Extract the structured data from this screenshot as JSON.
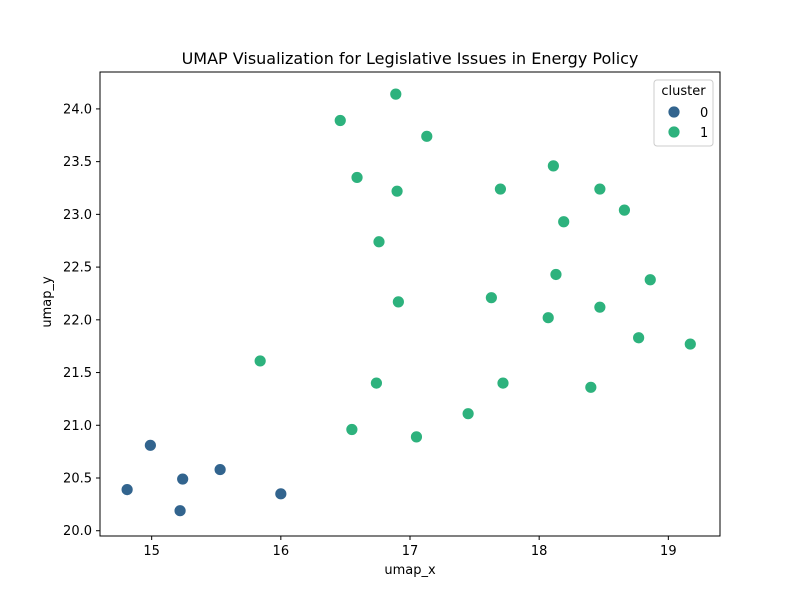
{
  "chart_data": {
    "type": "scatter",
    "title": "UMAP Visualization for Legislative Issues in Energy Policy",
    "xlabel": "umap_x",
    "ylabel": "umap_y",
    "xlim": [
      14.6,
      19.4
    ],
    "ylim": [
      19.95,
      24.35
    ],
    "xticks": [
      15,
      16,
      17,
      18,
      19
    ],
    "yticks": [
      20.0,
      20.5,
      21.0,
      21.5,
      22.0,
      22.5,
      23.0,
      23.5,
      24.0
    ],
    "xtick_labels": [
      "15",
      "16",
      "17",
      "18",
      "19"
    ],
    "ytick_labels": [
      "20.0",
      "20.5",
      "21.0",
      "21.5",
      "22.0",
      "22.5",
      "23.0",
      "23.5",
      "24.0"
    ],
    "grid": false,
    "legend": {
      "title": "cluster",
      "position": "top-right",
      "entries": [
        {
          "label": "0",
          "color": "#32648e"
        },
        {
          "label": "1",
          "color": "#2db27d"
        }
      ]
    },
    "series": [
      {
        "name": "0",
        "color": "#32648e",
        "points": [
          [
            14.99,
            20.81
          ],
          [
            14.81,
            20.39
          ],
          [
            15.24,
            20.49
          ],
          [
            15.53,
            20.58
          ],
          [
            15.22,
            20.19
          ],
          [
            16.0,
            20.35
          ]
        ]
      },
      {
        "name": "1",
        "color": "#2db27d",
        "points": [
          [
            16.89,
            24.14
          ],
          [
            16.46,
            23.89
          ],
          [
            17.13,
            23.74
          ],
          [
            16.59,
            23.35
          ],
          [
            16.9,
            23.22
          ],
          [
            18.11,
            23.46
          ],
          [
            17.7,
            23.24
          ],
          [
            18.47,
            23.24
          ],
          [
            18.66,
            23.04
          ],
          [
            18.19,
            22.93
          ],
          [
            16.76,
            22.74
          ],
          [
            18.13,
            22.43
          ],
          [
            18.86,
            22.38
          ],
          [
            17.63,
            22.21
          ],
          [
            16.91,
            22.17
          ],
          [
            18.47,
            22.12
          ],
          [
            18.07,
            22.02
          ],
          [
            18.77,
            21.83
          ],
          [
            19.17,
            21.77
          ],
          [
            15.84,
            21.61
          ],
          [
            16.74,
            21.4
          ],
          [
            17.72,
            21.4
          ],
          [
            18.4,
            21.36
          ],
          [
            17.45,
            21.11
          ],
          [
            16.55,
            20.96
          ],
          [
            17.05,
            20.89
          ]
        ]
      }
    ]
  }
}
